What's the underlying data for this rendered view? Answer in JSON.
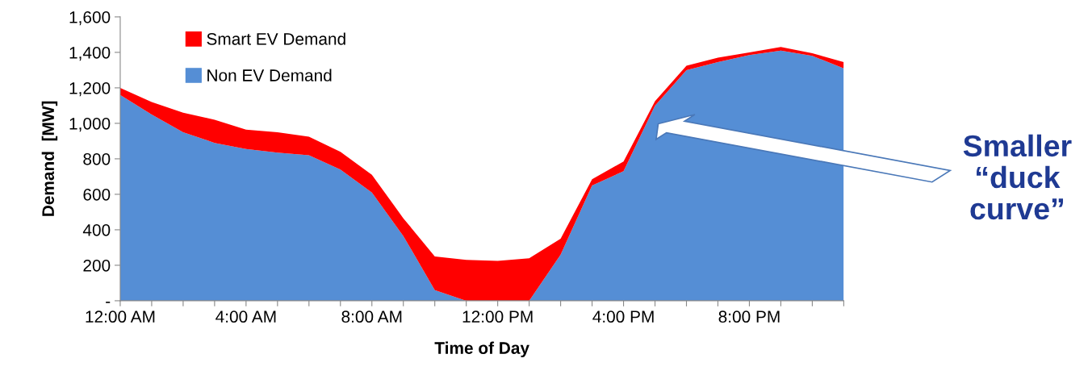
{
  "chart_data": {
    "type": "area",
    "stacked": true,
    "xlabel": "Time of Day",
    "ylabel": "Demand  [MW]",
    "categories": [
      "12:00 AM",
      null,
      null,
      null,
      "4:00 AM",
      null,
      null,
      null,
      "8:00 AM",
      null,
      null,
      null,
      "12:00 PM",
      null,
      null,
      null,
      "4:00 PM",
      null,
      null,
      null,
      "8:00 PM",
      null,
      null,
      null
    ],
    "series": [
      {
        "name": "Non EV Demand",
        "color": "#558ed5",
        "values": [
          1160,
          1050,
          950,
          890,
          855,
          835,
          820,
          740,
          610,
          365,
          60,
          0,
          0,
          0,
          260,
          650,
          730,
          1100,
          1300,
          1345,
          1385,
          1410,
          1380,
          1310
        ]
      },
      {
        "name": "Smart EV Demand",
        "color": "#ff0000",
        "values": [
          40,
          70,
          110,
          130,
          110,
          115,
          105,
          100,
          100,
          100,
          190,
          230,
          225,
          240,
          90,
          35,
          55,
          25,
          25,
          25,
          15,
          20,
          15,
          35
        ]
      }
    ],
    "ylim": [
      0,
      1600
    ],
    "yticks": [
      {
        "value": 0,
        "label": "-"
      },
      {
        "value": 200,
        "label": "200"
      },
      {
        "value": 400,
        "label": "400"
      },
      {
        "value": 600,
        "label": "600"
      },
      {
        "value": 800,
        "label": "800"
      },
      {
        "value": 1000,
        "label": "1,000"
      },
      {
        "value": 1200,
        "label": "1,200"
      },
      {
        "value": 1400,
        "label": "1,400"
      },
      {
        "value": 1600,
        "label": "1,600"
      }
    ],
    "grid": false,
    "legend": "top left",
    "annotations": [
      "Smaller\n“duck\ncurve”"
    ]
  }
}
